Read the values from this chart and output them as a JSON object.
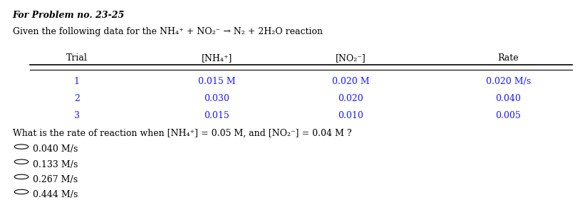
{
  "title_line1": "For Problem no. 23-25",
  "title_line2": "Given the following data for the NH₄⁺ + NO₂⁻ → N₂ + 2H₂O reaction",
  "table_header": [
    "Trial",
    "[NH₄⁺]",
    "[NO₂⁻]",
    "Rate"
  ],
  "table_rows": [
    [
      "1",
      "0.015 M",
      "0.020 M",
      "0.020 M/s"
    ],
    [
      "2",
      "0.030",
      "0.020",
      "0.040"
    ],
    [
      "3",
      "0.015",
      "0.010",
      "0.005"
    ]
  ],
  "question": "What is the rate of reaction when [NH₄⁺] = 0.05 M, and [NO₂⁻] = 0.04 M ?",
  "choices": [
    "0.040 M/s",
    "0.133 M/s",
    "0.267 M/s",
    "0.444 M/s"
  ],
  "bg_color": "#ffffff",
  "text_color": "#000000",
  "title_color": "#000000",
  "table_data_color": "#1a1aff",
  "header_color": "#000000",
  "font_size_title": 9,
  "font_size_body": 9,
  "font_size_table": 9
}
